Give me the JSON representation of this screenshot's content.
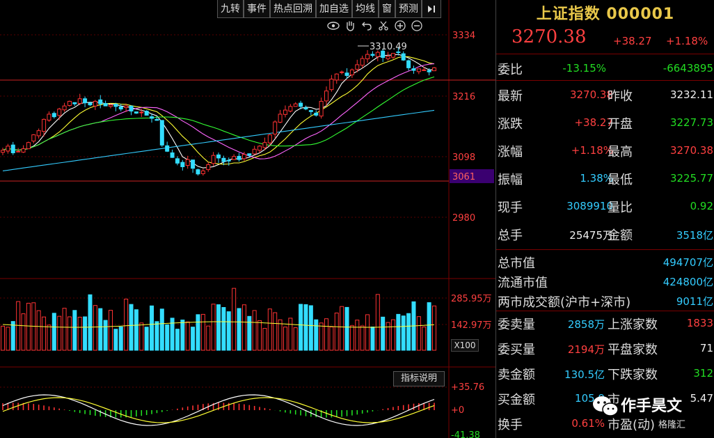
{
  "toolbar": {
    "buttons": [
      "九转",
      "事件",
      "热点回溯",
      "加自选",
      "均线",
      "窗",
      "预测"
    ]
  },
  "tool_icons": [
    "eye-icon",
    "hand-icon",
    "undo-icon",
    "scissors-icon",
    "zoom-in-icon",
    "zoom-out-icon"
  ],
  "kline": {
    "price_axis": [
      "3334",
      "3216",
      "3098",
      "3061",
      "2980"
    ],
    "high_annotation": "3310.49",
    "highlight_level": "3061",
    "closes": [
      3110,
      3118,
      3105,
      3108,
      3113,
      3125,
      3140,
      3148,
      3170,
      3180,
      3175,
      3190,
      3196,
      3205,
      3200,
      3210,
      3202,
      3198,
      3205,
      3200,
      3196,
      3198,
      3195,
      3190,
      3196,
      3186,
      3182,
      3184,
      3178,
      3172,
      3168,
      3120,
      3108,
      3096,
      3085,
      3078,
      3092,
      3075,
      3064,
      3070,
      3082,
      3100,
      3095,
      3088,
      3090,
      3098,
      3092,
      3102,
      3100,
      3112,
      3118,
      3125,
      3140,
      3165,
      3180,
      3188,
      3195,
      3200,
      3195,
      3190,
      3185,
      3178,
      3205,
      3225,
      3248,
      3258,
      3262,
      3255,
      3266,
      3276,
      3288,
      3296,
      3294,
      3300,
      3290,
      3292,
      3298,
      3300,
      3285,
      3270,
      3265,
      3268,
      3266,
      3262,
      3270
    ]
  },
  "volume": {
    "axis": [
      "285.95万",
      "142.97万"
    ],
    "multiplier": "X100"
  },
  "indicator": {
    "button_label": "指标说明",
    "axis": [
      "+35.76",
      "+0",
      "-41.38"
    ]
  },
  "quote": {
    "title": "上证指数 000001",
    "price": "3270.38",
    "change": "+38.27",
    "change_pct": "+1.18%",
    "weibi_label": "委比",
    "weibi_pct": "-13.15%",
    "weibi_val": "-6643895",
    "rows": [
      {
        "l1": "最新",
        "v1": "3270.38",
        "c1": "red",
        "l2": "昨收",
        "v2": "3232.11",
        "c2": "white"
      },
      {
        "l1": "涨跌",
        "v1": "+38.27",
        "c1": "red",
        "l2": "开盘",
        "v2": "3227.73",
        "c2": "green"
      },
      {
        "l1": "涨幅",
        "v1": "+1.18%",
        "c1": "red",
        "l2": "最高",
        "v2": "3270.38",
        "c2": "red"
      },
      {
        "l1": "振幅",
        "v1": "1.38%",
        "c1": "cyan",
        "l2": "最低",
        "v2": "3225.77",
        "c2": "green"
      },
      {
        "l1": "现手",
        "v1": "3089910",
        "c1": "cyan",
        "l2": "量比",
        "v2": "0.92",
        "c2": "green"
      },
      {
        "l1": "总手",
        "v1": "25475万",
        "c1": "white",
        "l2": "金额",
        "v2": "3518亿",
        "c2": "cyan"
      }
    ],
    "mkt": [
      {
        "l": "总市值",
        "v": "494707亿"
      },
      {
        "l": "流通市值",
        "v": "424800亿"
      },
      {
        "l": "两市成交额(沪市+深市)",
        "v": "9011亿"
      }
    ],
    "orders": [
      {
        "l1": "委卖量",
        "v1": "2858万",
        "c1": "cyan",
        "l2": "上涨家数",
        "v2": "1833",
        "c2": "red"
      },
      {
        "l1": "委买量",
        "v1": "2194万",
        "c1": "red",
        "l2": "平盘家数",
        "v2": "71",
        "c2": "white"
      },
      {
        "l1": "卖金额",
        "v1": "130.5亿",
        "c1": "cyan",
        "l2": "下跌家数",
        "v2": "312",
        "c2": "green"
      },
      {
        "l1": "买金额",
        "v1": "105.9",
        "c1": "cyan",
        "l2": "市",
        "v2": "5.47",
        "c2": "white"
      },
      {
        "l1": "换手",
        "v1": "0.61%",
        "c1": "red",
        "l2": "市盈(动)",
        "v2": "",
        "c2": "white"
      }
    ]
  },
  "watermark": {
    "text": "作手昊文",
    "sub": "格隆汇"
  },
  "colors": {
    "up": "#ff3333",
    "down": "#33ddff",
    "ma5": "#ffffff",
    "ma10": "#ffff33",
    "ma20": "#ff66ff",
    "ma30": "#33ff33",
    "ma60": "#33ccff",
    "grid": "#7a0000"
  }
}
